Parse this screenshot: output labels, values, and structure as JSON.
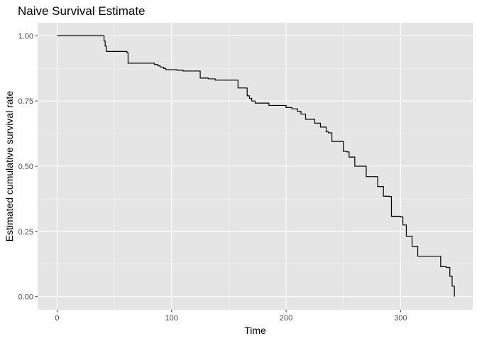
{
  "chart_data": {
    "type": "line",
    "title": "Naive Survival Estimate",
    "xlabel": "Time",
    "ylabel": "Estimated cumulative survival rate",
    "xlim": [
      -17,
      363
    ],
    "ylim": [
      -0.05,
      1.05
    ],
    "xticks": [
      0,
      100,
      200,
      300
    ],
    "xtick_labels": [
      "0",
      "100",
      "200",
      "300"
    ],
    "yticks": [
      0,
      0.25,
      0.5,
      0.75,
      1.0
    ],
    "ytick_labels": [
      "0.00",
      "0.25",
      "0.50",
      "0.75",
      "1.00"
    ],
    "grid": true,
    "colors": {
      "panel": "#e5e5e5",
      "grid_major": "#ffffff",
      "grid_minor": "#f2f2f2",
      "line": "#000000",
      "tick": "#333333"
    },
    "series": [
      {
        "step": true,
        "x": [
          0,
          41,
          42,
          43,
          61,
          62,
          85,
          88,
          90,
          93,
          95,
          100,
          105,
          110,
          125,
          132,
          138,
          158,
          166,
          168,
          170,
          173,
          180,
          185,
          200,
          205,
          210,
          213,
          217,
          225,
          230,
          235,
          237,
          240,
          245,
          250,
          253,
          255,
          260,
          270,
          272,
          280,
          285,
          290,
          292,
          300,
          302,
          305,
          310,
          315,
          335,
          340,
          343,
          345,
          347
        ],
        "y": [
          1.0,
          0.98,
          0.96,
          0.94,
          0.935,
          0.895,
          0.89,
          0.885,
          0.88,
          0.875,
          0.87,
          0.87,
          0.868,
          0.865,
          0.838,
          0.835,
          0.83,
          0.8,
          0.77,
          0.76,
          0.75,
          0.742,
          0.742,
          0.733,
          0.725,
          0.72,
          0.71,
          0.7,
          0.68,
          0.665,
          0.65,
          0.632,
          0.628,
          0.595,
          0.595,
          0.557,
          0.555,
          0.535,
          0.5,
          0.46,
          0.46,
          0.422,
          0.385,
          0.384,
          0.308,
          0.306,
          0.275,
          0.232,
          0.193,
          0.155,
          0.115,
          0.112,
          0.078,
          0.04,
          0.0
        ]
      }
    ]
  }
}
